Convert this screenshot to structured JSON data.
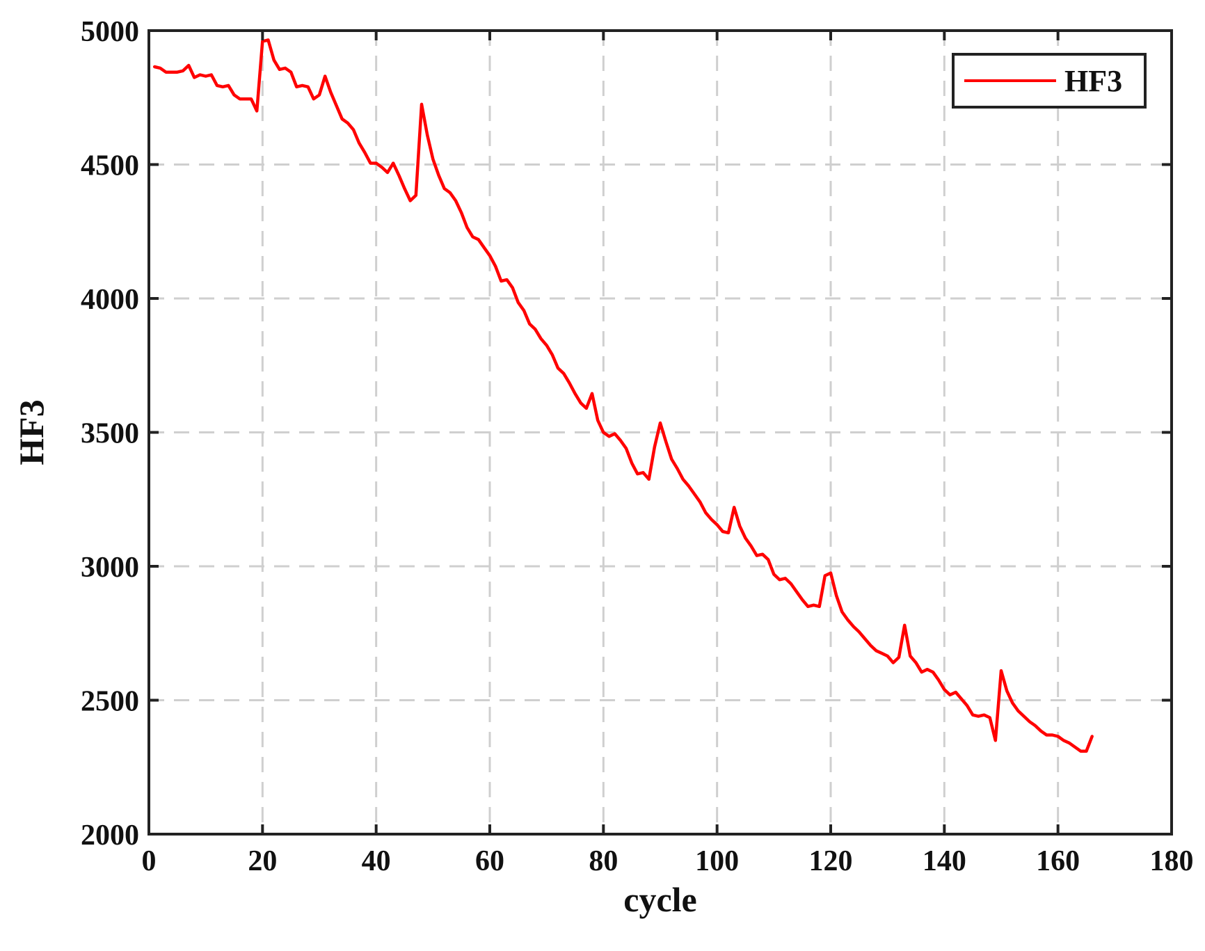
{
  "chart_data": {
    "type": "line",
    "xlabel": "cycle",
    "ylabel": "HF3",
    "xlim": [
      0,
      180
    ],
    "ylim": [
      2000,
      5000
    ],
    "xticks": [
      0,
      20,
      40,
      60,
      80,
      100,
      120,
      140,
      160,
      180
    ],
    "yticks": [
      2000,
      2500,
      3000,
      3500,
      4000,
      4500,
      5000
    ],
    "x_tick_labels": [
      "0",
      "20",
      "40",
      "60",
      "80",
      "100",
      "120",
      "140",
      "160",
      "180"
    ],
    "y_tick_labels": [
      "2000",
      "2500",
      "3000",
      "3500",
      "4000",
      "4500",
      "5000"
    ],
    "grid": true,
    "legend_position": "top-right",
    "series": [
      {
        "name": "HF3",
        "color": "#ff0000",
        "x": [
          1,
          2,
          3,
          4,
          5,
          6,
          7,
          8,
          9,
          10,
          11,
          12,
          13,
          14,
          15,
          16,
          17,
          18,
          19,
          20,
          21,
          22,
          23,
          24,
          25,
          26,
          27,
          28,
          29,
          30,
          31,
          32,
          33,
          34,
          35,
          36,
          37,
          38,
          39,
          40,
          41,
          42,
          43,
          44,
          45,
          46,
          47,
          48,
          49,
          50,
          51,
          52,
          53,
          54,
          55,
          56,
          57,
          58,
          59,
          60,
          61,
          62,
          63,
          64,
          65,
          66,
          67,
          68,
          69,
          70,
          71,
          72,
          73,
          74,
          75,
          76,
          77,
          78,
          79,
          80,
          81,
          82,
          83,
          84,
          85,
          86,
          87,
          88,
          89,
          90,
          91,
          92,
          93,
          94,
          95,
          96,
          97,
          98,
          99,
          100,
          101,
          102,
          103,
          104,
          105,
          106,
          107,
          108,
          109,
          110,
          111,
          112,
          113,
          114,
          115,
          116,
          117,
          118,
          119,
          120,
          121,
          122,
          123,
          124,
          125,
          126,
          127,
          128,
          129,
          130,
          131,
          132,
          133,
          134,
          135,
          136,
          137,
          138,
          139,
          140,
          141,
          142,
          143,
          144,
          145,
          146,
          147,
          148,
          149,
          150,
          151,
          152,
          153,
          154,
          155,
          156,
          157,
          158,
          159,
          160,
          161,
          162,
          163,
          164,
          165,
          166
        ],
        "y": [
          4865,
          4860,
          4845,
          4845,
          4845,
          4850,
          4870,
          4825,
          4835,
          4830,
          4835,
          4795,
          4790,
          4795,
          4760,
          4745,
          4745,
          4745,
          4700,
          4960,
          4965,
          4890,
          4855,
          4860,
          4845,
          4790,
          4795,
          4790,
          4745,
          4760,
          4830,
          4770,
          4720,
          4670,
          4655,
          4630,
          4580,
          4545,
          4505,
          4505,
          4490,
          4470,
          4505,
          4460,
          4410,
          4365,
          4385,
          4725,
          4610,
          4520,
          4460,
          4410,
          4395,
          4365,
          4320,
          4265,
          4230,
          4220,
          4190,
          4160,
          4120,
          4065,
          4070,
          4040,
          3985,
          3955,
          3905,
          3885,
          3850,
          3825,
          3790,
          3740,
          3720,
          3685,
          3645,
          3610,
          3590,
          3645,
          3545,
          3500,
          3485,
          3495,
          3470,
          3440,
          3385,
          3345,
          3350,
          3325,
          3445,
          3535,
          3465,
          3400,
          3365,
          3325,
          3300,
          3270,
          3240,
          3200,
          3175,
          3155,
          3130,
          3125,
          3220,
          3150,
          3105,
          3075,
          3040,
          3045,
          3025,
          2970,
          2950,
          2955,
          2935,
          2905,
          2875,
          2850,
          2855,
          2850,
          2965,
          2975,
          2890,
          2830,
          2800,
          2775,
          2755,
          2730,
          2705,
          2685,
          2675,
          2665,
          2640,
          2660,
          2780,
          2665,
          2640,
          2605,
          2615,
          2605,
          2575,
          2540,
          2520,
          2530,
          2505,
          2480,
          2445,
          2440,
          2445,
          2435,
          2350,
          2610,
          2535,
          2490,
          2460,
          2440,
          2420,
          2405,
          2385,
          2370,
          2370,
          2365,
          2350,
          2340,
          2325,
          2310,
          2310,
          2365
        ]
      }
    ]
  }
}
